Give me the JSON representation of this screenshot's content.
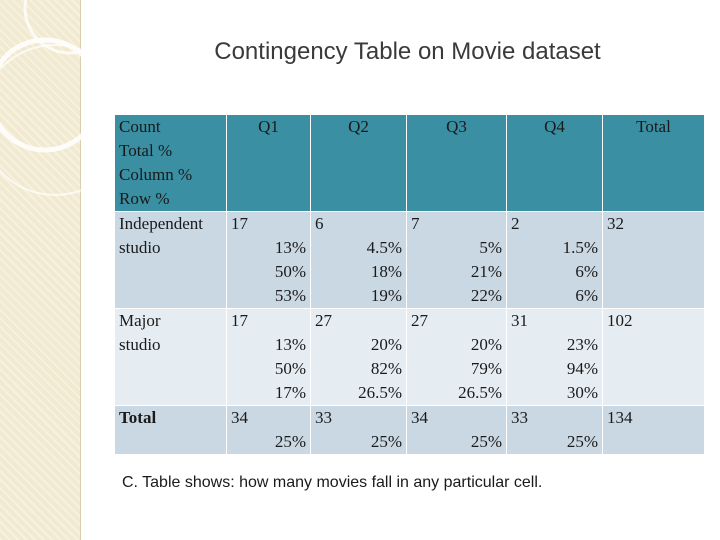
{
  "title": "Contingency Table on Movie dataset",
  "table": {
    "corner": [
      "Count",
      "Total %",
      "Column %",
      "Row %"
    ],
    "columns": [
      "Q1",
      "Q2",
      "Q3",
      "Q4",
      "Total"
    ],
    "rows": [
      {
        "label": [
          "Independent",
          "studio"
        ],
        "cells": [
          {
            "count": "17",
            "total_pct": "13%",
            "col_pct": "50%",
            "row_pct": "53%"
          },
          {
            "count": "6",
            "total_pct": "4.5%",
            "col_pct": "18%",
            "row_pct": "19%"
          },
          {
            "count": "7",
            "total_pct": "5%",
            "col_pct": "21%",
            "row_pct": "22%"
          },
          {
            "count": "2",
            "total_pct": "1.5%",
            "col_pct": "6%",
            "row_pct": "6%"
          }
        ],
        "total": "32"
      },
      {
        "label": [
          "Major",
          "studio"
        ],
        "cells": [
          {
            "count": "17",
            "total_pct": "13%",
            "col_pct": "50%",
            "row_pct": "17%"
          },
          {
            "count": "27",
            "total_pct": "20%",
            "col_pct": "82%",
            "row_pct": "26.5%"
          },
          {
            "count": "27",
            "total_pct": "20%",
            "col_pct": "79%",
            "row_pct": "26.5%"
          },
          {
            "count": "31",
            "total_pct": "23%",
            "col_pct": "94%",
            "row_pct": "30%"
          }
        ],
        "total": "102"
      },
      {
        "label": [
          "Total",
          ""
        ],
        "cells": [
          {
            "count": "34",
            "total_pct": "25%"
          },
          {
            "count": "33",
            "total_pct": "25%"
          },
          {
            "count": "34",
            "total_pct": "25%"
          },
          {
            "count": "33",
            "total_pct": "25%"
          }
        ],
        "total": "134"
      }
    ]
  },
  "footnote": "C. Table shows: how many movies fall in any particular cell."
}
